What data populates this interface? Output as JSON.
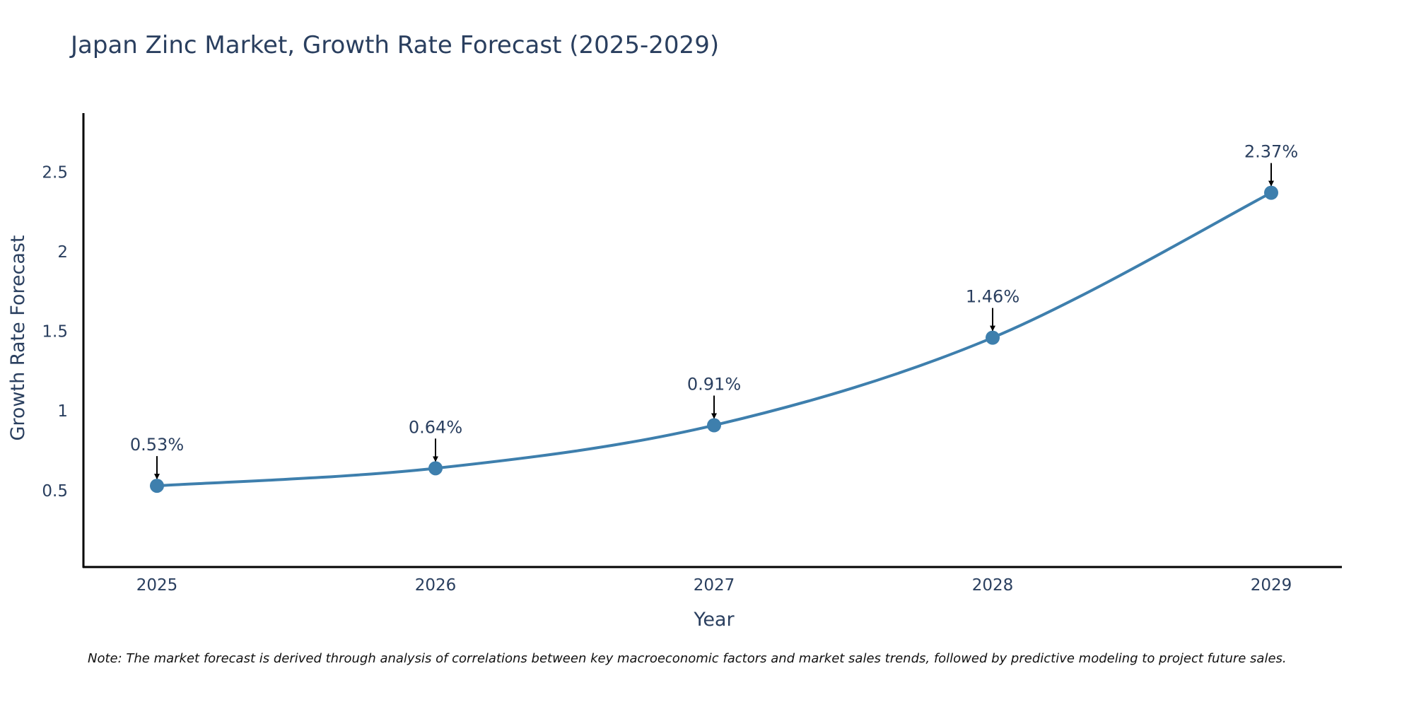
{
  "chart_data": {
    "type": "line",
    "title": "Japan Zinc Market, Growth Rate Forecast (2025-2029)",
    "xlabel": "Year",
    "ylabel": "Growth Rate Forecast",
    "categories": [
      "2025",
      "2026",
      "2027",
      "2028",
      "2029"
    ],
    "values": [
      0.53,
      0.64,
      0.91,
      1.46,
      2.37
    ],
    "data_labels": [
      "0.53%",
      "0.64%",
      "0.91%",
      "1.46%",
      "2.37%"
    ],
    "yticks": [
      0.5,
      1,
      1.5,
      2,
      2.5
    ],
    "ytick_labels": [
      "0.5",
      "1",
      "1.5",
      "2",
      "2.5"
    ],
    "ylim": [
      0.02,
      2.87
    ],
    "grid": false,
    "line_color": "#3e7fad",
    "marker_color": "#3e7fad",
    "text_color": "#2a3f5f"
  },
  "note": "Note: The market forecast is derived through analysis of correlations between key macroeconomic factors and market sales trends, followed by predictive modeling to project future sales."
}
